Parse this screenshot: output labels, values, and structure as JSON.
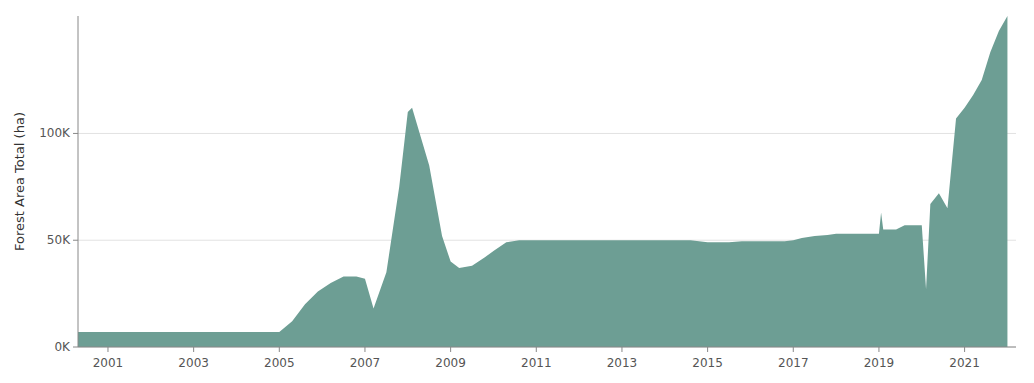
{
  "chart_data": {
    "type": "area",
    "y_label": "Forest Area Total (ha)",
    "x": [
      2000.3,
      2001,
      2002,
      2003,
      2003.5,
      2004,
      2004.5,
      2005,
      2005.3,
      2005.6,
      2005.9,
      2006.2,
      2006.5,
      2006.8,
      2007,
      2007.2,
      2007.5,
      2007.8,
      2008,
      2008.1,
      2008.5,
      2008.8,
      2009,
      2009.2,
      2009.5,
      2009.8,
      2010,
      2010.3,
      2010.6,
      2011,
      2011.3,
      2011.5,
      2012,
      2012.5,
      2013,
      2013.5,
      2014,
      2014.3,
      2014.6,
      2015,
      2015.3,
      2015.5,
      2015.8,
      2016,
      2016.3,
      2016.5,
      2016.8,
      2017,
      2017.2,
      2017.5,
      2017.8,
      2018,
      2018.2,
      2018.5,
      2018.8,
      2019,
      2019.05,
      2019.1,
      2019.2,
      2019.4,
      2019.6,
      2019.8,
      2020,
      2020.1,
      2020.2,
      2020.4,
      2020.6,
      2020.8,
      2021,
      2021.2,
      2021.4,
      2021.6,
      2021.8,
      2022
    ],
    "values": [
      7000,
      7000,
      7000,
      7000,
      7000,
      7000,
      7000,
      7000,
      12000,
      20000,
      26000,
      30000,
      33000,
      33000,
      32000,
      18000,
      35000,
      75000,
      110000,
      112000,
      85000,
      52000,
      40000,
      37000,
      38000,
      42000,
      45000,
      49000,
      50000,
      50000,
      50000,
      50000,
      50000,
      50000,
      50000,
      50000,
      50000,
      50000,
      50000,
      49000,
      49000,
      49000,
      49500,
      49500,
      49500,
      49500,
      49500,
      50000,
      51000,
      52000,
      52500,
      53000,
      53000,
      53000,
      53000,
      53000,
      63000,
      55000,
      55000,
      55000,
      57000,
      57000,
      57000,
      27000,
      67000,
      72000,
      65000,
      107000,
      112000,
      118000,
      125000,
      138000,
      148000,
      155000
    ],
    "color": "#6d9e94",
    "xlim": [
      2000.3,
      2022.2
    ],
    "xticks": [
      2001,
      2003,
      2005,
      2007,
      2009,
      2011,
      2013,
      2015,
      2017,
      2019,
      2021
    ],
    "ylim": [
      0,
      155000
    ],
    "yticks": [
      {
        "value": 0,
        "label": "0K"
      },
      {
        "value": 50000,
        "label": "50K"
      },
      {
        "value": 100000,
        "label": "100K"
      }
    ],
    "grid": true
  }
}
